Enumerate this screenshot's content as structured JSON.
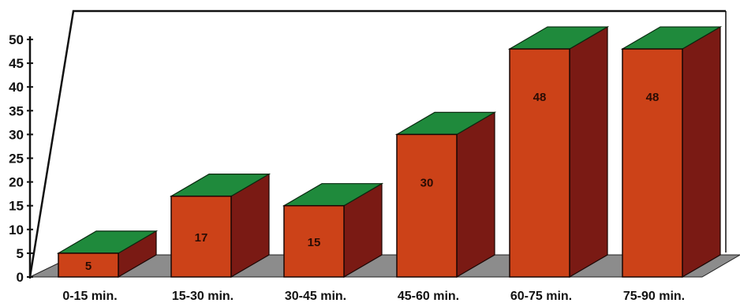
{
  "chart_data": {
    "type": "bar",
    "style": "3d",
    "title": "",
    "xlabel": "",
    "ylabel": "",
    "categories": [
      "0-15 min.",
      "15-30 min.",
      "30-45 min.",
      "45-60 min.",
      "60-75 min.",
      "75-90 min."
    ],
    "values": [
      5,
      17,
      15,
      30,
      48,
      48
    ],
    "data_labels": [
      "5",
      "17",
      "15",
      "30",
      "48",
      "48"
    ],
    "ylim": [
      0,
      50
    ],
    "yticks": [
      0,
      5,
      10,
      15,
      20,
      25,
      30,
      35,
      40,
      45,
      50
    ],
    "grid": false,
    "legend": "none",
    "colors": {
      "bar_front": "#cc4218",
      "bar_side": "#7a1a14",
      "bar_top": "#1f8a3c",
      "floor": "#8c8c8c",
      "axis": "#111111"
    }
  }
}
